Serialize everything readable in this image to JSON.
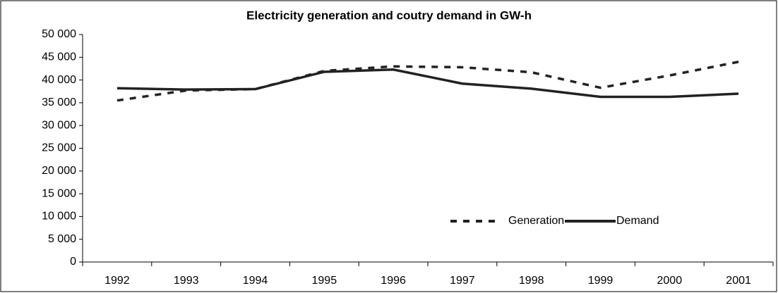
{
  "chart_data": {
    "type": "line",
    "title": "Electricity generation and coutry demand in GW-h",
    "categories": [
      "1992",
      "1993",
      "1994",
      "1995",
      "1996",
      "1997",
      "1998",
      "1999",
      "2000",
      "2001"
    ],
    "series": [
      {
        "name": "Generation",
        "color": "#222222",
        "style": "dashed",
        "values": [
          35500,
          37700,
          38000,
          42000,
          43000,
          42800,
          41700,
          38300,
          41000,
          44000
        ]
      },
      {
        "name": "Demand",
        "color": "#222222",
        "style": "solid",
        "values": [
          38200,
          37900,
          38000,
          41800,
          42300,
          39200,
          38100,
          36300,
          36300,
          37000
        ]
      }
    ],
    "ylim": [
      0,
      50000
    ],
    "yticks": [
      {
        "value": 0,
        "label": "0"
      },
      {
        "value": 5000,
        "label": "5 000"
      },
      {
        "value": 10000,
        "label": "10 000"
      },
      {
        "value": 15000,
        "label": "15 000"
      },
      {
        "value": 20000,
        "label": "20 000"
      },
      {
        "value": 25000,
        "label": "25 000"
      },
      {
        "value": 30000,
        "label": "30 000"
      },
      {
        "value": 35000,
        "label": "35 000"
      },
      {
        "value": 40000,
        "label": "40 000"
      },
      {
        "value": 45000,
        "label": "45 000"
      },
      {
        "value": 50000,
        "label": "50 000"
      }
    ],
    "legend": "lower right"
  }
}
